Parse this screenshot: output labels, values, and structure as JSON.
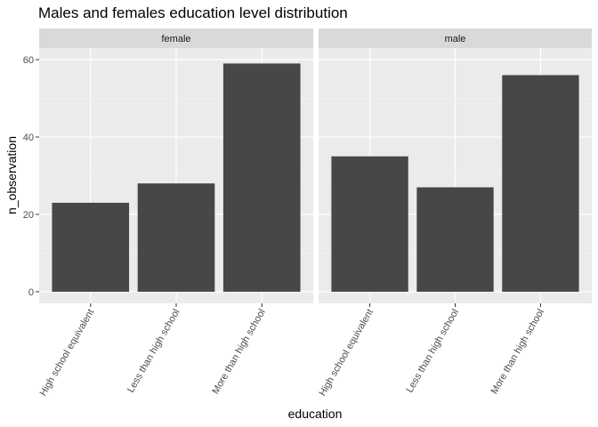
{
  "chart_data": {
    "type": "bar",
    "title": "Males and females education level distribution",
    "xlabel": "education",
    "ylabel": "n_observation",
    "ylim": [
      -3,
      63
    ],
    "y_ticks": [
      0,
      20,
      40,
      60
    ],
    "y_tick_labels": [
      "0",
      "20",
      "40",
      "60"
    ],
    "grid": true,
    "categories": [
      "High school equivalent",
      "Less than high school",
      "More than high school"
    ],
    "panels": [
      {
        "label": "female",
        "values": [
          23,
          28,
          59
        ]
      },
      {
        "label": "male",
        "values": [
          35,
          27,
          56
        ]
      }
    ],
    "colors": {
      "bar": "#474747",
      "panel_background": "#ebebeb",
      "strip_background": "#d9d9d9",
      "grid_major": "#ffffff",
      "grid_minor": "#f5f5f5"
    }
  }
}
